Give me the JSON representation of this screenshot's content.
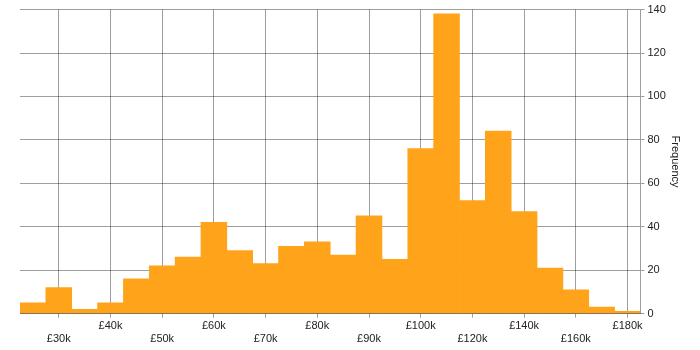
{
  "chart_data": {
    "type": "bar",
    "categories": [
      null,
      "£30k",
      null,
      "£40k",
      null,
      "£50k",
      null,
      "£60k",
      null,
      "£70k",
      null,
      "£80k",
      null,
      "£90k",
      null,
      "£100k",
      null,
      "£120k",
      null,
      "£140k",
      null,
      "£160k",
      null,
      "£180k"
    ],
    "values": [
      5,
      12,
      2,
      5,
      16,
      22,
      26,
      42,
      29,
      23,
      31,
      33,
      27,
      45,
      25,
      76,
      138,
      52,
      84,
      47,
      21,
      11,
      3,
      1
    ],
    "color": "#ffa31a",
    "ylabel": "Frequency",
    "ylim": [
      0,
      140
    ],
    "yticks": [
      0,
      20,
      40,
      60,
      80,
      100,
      120,
      140
    ],
    "grid": true
  }
}
